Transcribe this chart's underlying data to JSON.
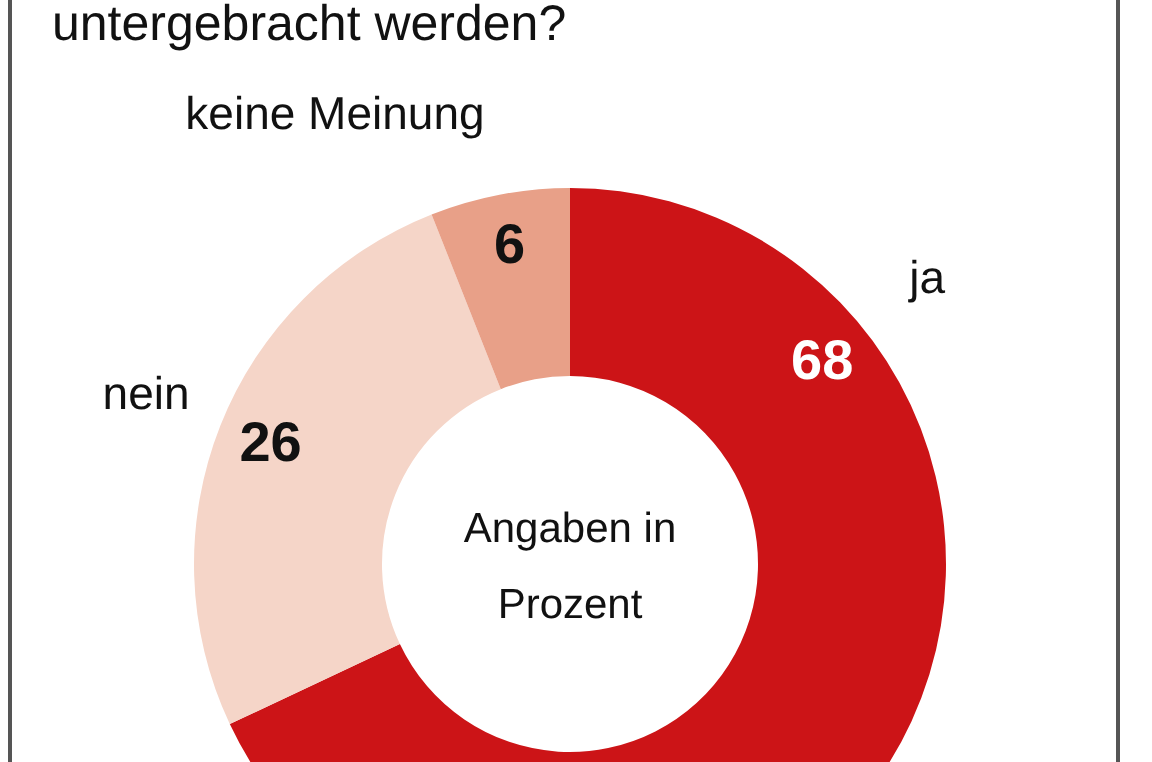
{
  "chart_data": {
    "type": "donut",
    "title": "untergebracht werden?",
    "categories": [
      "ja",
      "nein",
      "keine Meinung"
    ],
    "values": [
      68,
      26,
      6
    ],
    "colors": [
      "#cc1417",
      "#f5d5c8",
      "#e8a088"
    ],
    "data_labels": true,
    "annotations": [
      "Angaben in Prozent"
    ],
    "legend": false
  }
}
